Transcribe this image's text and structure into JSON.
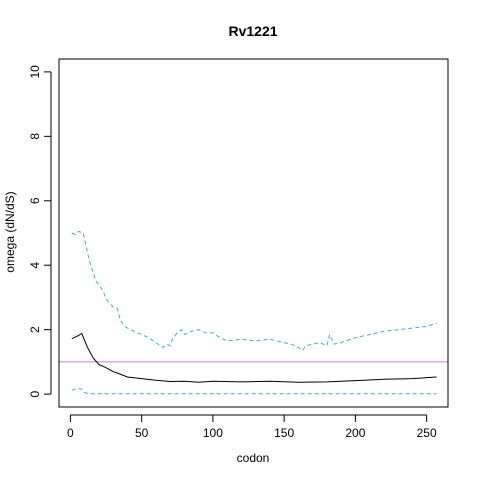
{
  "chart_data": {
    "type": "line",
    "title": "Rv1221",
    "xlabel": "codon",
    "ylabel": "omega (dN/dS)",
    "xlim": [
      -8,
      265
    ],
    "ylim": [
      -0.4,
      10.4
    ],
    "xticks": [
      0,
      50,
      100,
      150,
      200,
      250
    ],
    "yticks": [
      0,
      2,
      4,
      6,
      8,
      10
    ],
    "reference_line": {
      "y": 1,
      "color": "#c97fc9"
    },
    "series": [
      {
        "role": "estimate",
        "color": "#000000",
        "dash": "solid",
        "x": [
          1,
          5,
          8,
          12,
          16,
          20,
          25,
          30,
          35,
          40,
          50,
          60,
          70,
          80,
          90,
          100,
          120,
          140,
          160,
          180,
          200,
          220,
          240,
          257
        ],
        "y": [
          1.72,
          1.8,
          1.88,
          1.45,
          1.12,
          0.92,
          0.82,
          0.7,
          0.62,
          0.53,
          0.48,
          0.43,
          0.39,
          0.4,
          0.37,
          0.4,
          0.38,
          0.4,
          0.37,
          0.38,
          0.42,
          0.46,
          0.48,
          0.53
        ]
      },
      {
        "role": "upper",
        "color": "#3fa9d9",
        "dash": "dashed",
        "x": [
          1,
          3,
          6,
          9,
          11,
          13,
          15,
          18,
          20,
          23,
          25,
          28,
          30,
          33,
          35,
          38,
          40,
          45,
          50,
          55,
          60,
          63,
          65,
          68,
          70,
          72,
          75,
          78,
          80,
          85,
          90,
          95,
          100,
          105,
          110,
          120,
          130,
          140,
          150,
          155,
          160,
          163,
          165,
          170,
          175,
          180,
          182,
          185,
          190,
          200,
          210,
          220,
          230,
          240,
          250,
          257
        ],
        "y": [
          5.0,
          4.95,
          5.05,
          5.0,
          4.6,
          4.2,
          3.9,
          3.5,
          3.4,
          3.2,
          2.95,
          2.8,
          2.7,
          2.65,
          2.3,
          2.1,
          2.05,
          1.95,
          1.85,
          1.75,
          1.6,
          1.5,
          1.45,
          1.55,
          1.5,
          1.75,
          1.9,
          2.0,
          1.85,
          1.95,
          2.0,
          1.9,
          1.9,
          1.75,
          1.65,
          1.7,
          1.65,
          1.7,
          1.6,
          1.55,
          1.45,
          1.35,
          1.5,
          1.55,
          1.6,
          1.5,
          1.85,
          1.55,
          1.6,
          1.75,
          1.85,
          1.95,
          2.0,
          2.05,
          2.1,
          2.2
        ]
      },
      {
        "role": "lower",
        "color": "#3fa9d9",
        "dash": "dashed",
        "x": [
          1,
          5,
          8,
          10,
          12,
          15,
          20,
          50,
          100,
          150,
          200,
          257
        ],
        "y": [
          0.12,
          0.18,
          0.15,
          0.05,
          0.02,
          0.01,
          0.01,
          0.01,
          0.01,
          0.01,
          0.01,
          0.01
        ]
      }
    ]
  }
}
